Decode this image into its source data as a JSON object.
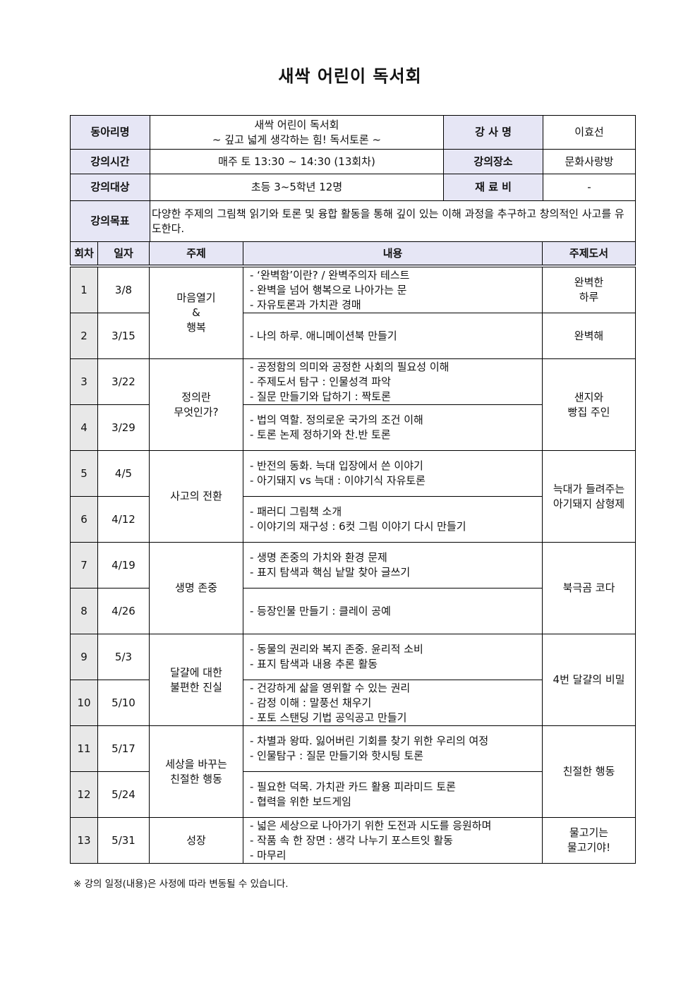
{
  "title": "새싹 어린이 독서회",
  "info": {
    "club_label": "동아리명",
    "club_lines": [
      "새싹 어린이 독서회",
      "~ 깊고 넓게 생각하는 힘! 독서토론 ~"
    ],
    "instructor_label": "강 사 명",
    "instructor": "이효선",
    "time_label": "강의시간",
    "time": "매주 토 13:30 ~ 14:30 (13회차)",
    "place_label": "강의장소",
    "place": "문화사랑방",
    "target_label": "강의대상",
    "target": "초등 3~5학년 12명",
    "fee_label": "재 료 비",
    "fee": "-",
    "goal_label": "강의목표",
    "goal": " 다양한 주제의 그림책 읽기와 토론 및 융합 활동을 통해 깊이 있는 이해 과정을 추구하고 창의적인 사고를 유도한다."
  },
  "schedule": {
    "headers": [
      "회차",
      "일자",
      "주제",
      "내용",
      "주제도서"
    ],
    "sessions": [
      {
        "num": "1",
        "date": "3/8",
        "content": [
          "- ‘완벽함’이란? / 완벽주의자 테스트",
          "- 완벽을 넘어 행복으로 나아가는 문",
          "- 자유토론과 가치관 경매"
        ]
      },
      {
        "num": "2",
        "date": "3/15",
        "content": [
          "- 나의 하루. 애니메이션북 만들기"
        ]
      },
      {
        "num": "3",
        "date": "3/22",
        "content": [
          "- 공정함의 의미와 공정한 사회의 필요성 이해",
          "- 주제도서 탐구 : 인물성격 파악",
          "- 질문 만들기와 답하기 : 짝토론"
        ]
      },
      {
        "num": "4",
        "date": "3/29",
        "content": [
          "- 법의 역할. 정의로운 국가의 조건 이해",
          "- 토론 논제 정하기와 찬.반 토론"
        ]
      },
      {
        "num": "5",
        "date": "4/5",
        "content": [
          "- 반전의 동화. 늑대 입장에서 쓴 이야기",
          "- 아기돼지 vs 늑대 : 이야기식 자유토론"
        ]
      },
      {
        "num": "6",
        "date": "4/12",
        "content": [
          "- 패러디 그림책 소개",
          "- 이야기의 재구성 : 6컷 그림 이야기 다시 만들기"
        ]
      },
      {
        "num": "7",
        "date": "4/19",
        "content": [
          "- 생명 존중의 가치와 환경 문제",
          "- 표지 탐색과 핵심 낱말 찾아 글쓰기"
        ]
      },
      {
        "num": "8",
        "date": "4/26",
        "content": [
          "- 등장인물 만들기 : 클레이 공예"
        ]
      },
      {
        "num": "9",
        "date": "5/3",
        "content": [
          "- 동물의 권리와 복지 존중. 윤리적 소비",
          "- 표지 탐색과 내용 추론 활동"
        ]
      },
      {
        "num": "10",
        "date": "5/10",
        "content": [
          "- 건강하게 삶을 영위할 수 있는 권리",
          "- 감정 이해 : 말풍선 채우기",
          "- 포토 스탠딩 기법 공익공고 만들기"
        ]
      },
      {
        "num": "11",
        "date": "5/17",
        "content": [
          "- 차별과 왕따. 잃어버린 기회를 찾기 위한 우리의 여정",
          "- 인물탐구 : 질문 만들기와 핫시팅 토론"
        ]
      },
      {
        "num": "12",
        "date": "5/24",
        "content": [
          "- 필요한 덕목. 가치관 카드 활용 피라미드 토론",
          "- 협력을 위한 보드게임"
        ]
      },
      {
        "num": "13",
        "date": "5/31",
        "content": [
          "- 넓은 세상으로 나아가기 위한 도전과 시도를 응원하며",
          "- 작품 속 한 장면 : 생각 나누기 포스트잇 활동",
          "- 마무리"
        ]
      }
    ],
    "topics": [
      {
        "span": 2,
        "lines": [
          "마음열기",
          "&",
          "행복"
        ]
      },
      {
        "span": 2,
        "lines": [
          "정의란",
          "무엇인가?"
        ]
      },
      {
        "span": 2,
        "lines": [
          "사고의 전환"
        ]
      },
      {
        "span": 2,
        "lines": [
          "생명 존중"
        ]
      },
      {
        "span": 2,
        "lines": [
          "달걀에 대한",
          "불편한 진실"
        ]
      },
      {
        "span": 2,
        "lines": [
          "세상을 바꾸는",
          "친절한 행동"
        ]
      },
      {
        "span": 1,
        "lines": [
          "성장"
        ]
      }
    ],
    "books": [
      {
        "span": 1,
        "lines": [
          "완벽한",
          "하루"
        ]
      },
      {
        "span": 1,
        "lines": [
          "완벽해"
        ]
      },
      {
        "span": 2,
        "lines": [
          "샌지와",
          "빵집 주인"
        ]
      },
      {
        "span": 2,
        "lines": [
          "늑대가 들려주는",
          "아기돼지 삼형제"
        ]
      },
      {
        "span": 2,
        "lines": [
          "북극곰 코다"
        ]
      },
      {
        "span": 2,
        "lines": [
          "4번 달걀의 비밀"
        ]
      },
      {
        "span": 2,
        "lines": [
          "친절한 행동"
        ]
      },
      {
        "span": 1,
        "lines": [
          "물고기는",
          "물고기야!"
        ]
      }
    ]
  },
  "note": "※ 강의 일정(내용)은 사정에 따라 변동될 수 있습니다."
}
